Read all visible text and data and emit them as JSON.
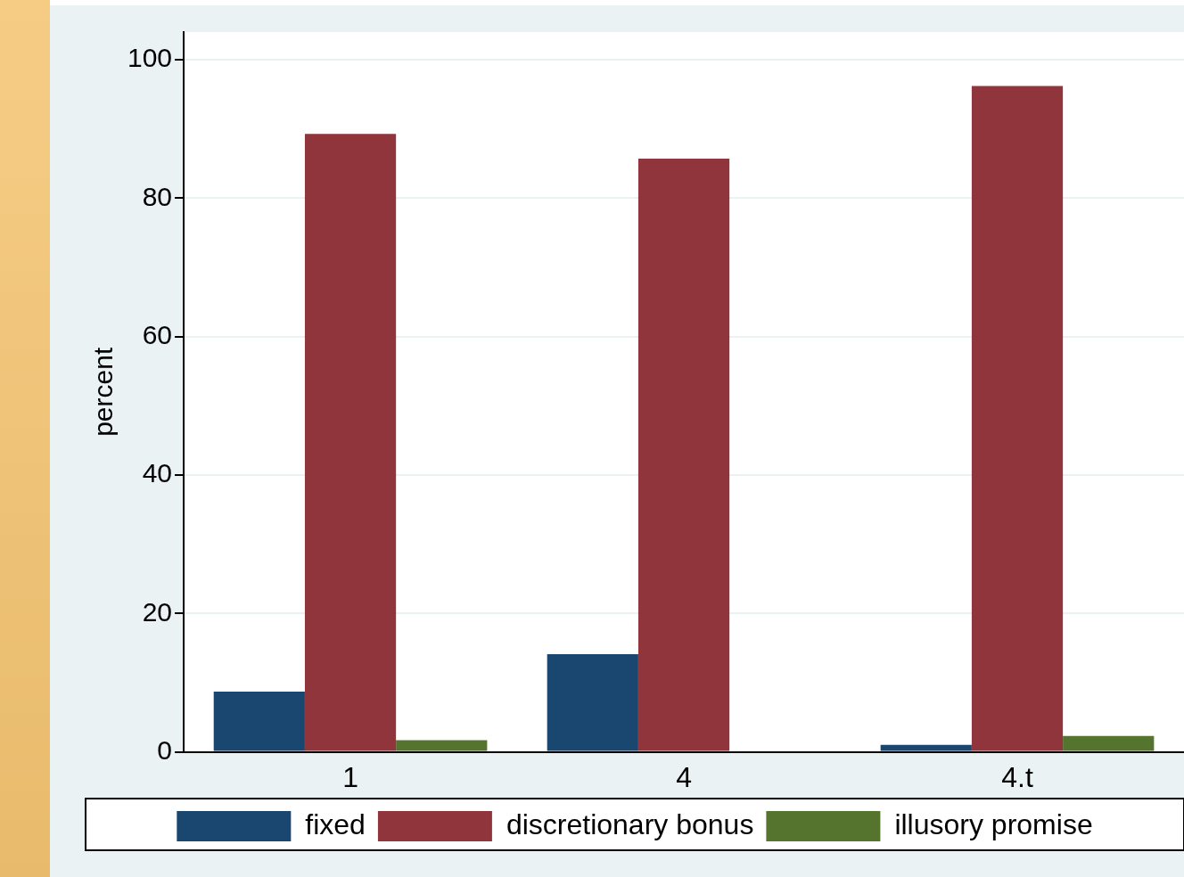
{
  "chart_data": {
    "type": "bar",
    "categories": [
      "1",
      "4",
      "4.t"
    ],
    "ylabel": "percent",
    "ylim": [
      0,
      104
    ],
    "yticks": [
      0,
      20,
      40,
      60,
      80,
      100
    ],
    "grid": "y",
    "legend": "bottom",
    "series": [
      {
        "name": "fixed",
        "color": "#1a476f",
        "values": [
          8.7,
          14.1,
          1.0
        ]
      },
      {
        "name": "discretionary bonus",
        "color": "#90353b",
        "values": [
          89.3,
          85.7,
          96.2
        ]
      },
      {
        "name": "illusory promise",
        "color": "#55752f",
        "values": [
          1.7,
          0,
          2.3
        ]
      }
    ]
  }
}
